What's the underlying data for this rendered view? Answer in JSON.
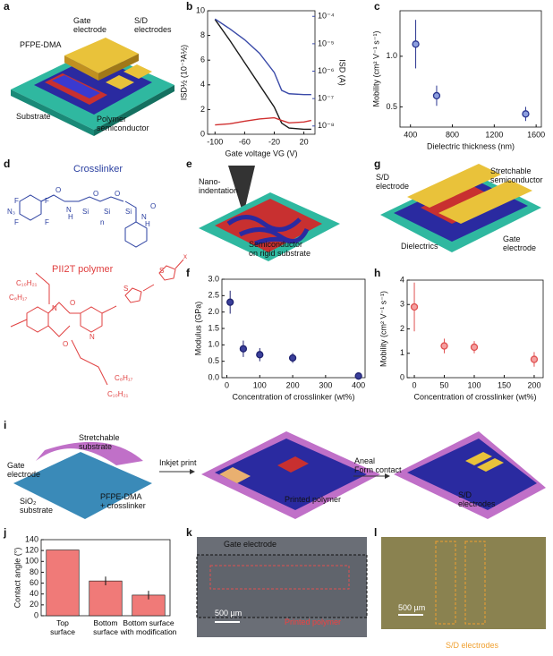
{
  "panel_labels": [
    "a",
    "b",
    "c",
    "d",
    "e",
    "f",
    "g",
    "h",
    "i",
    "j",
    "k",
    "l"
  ],
  "diagrams": {
    "a": [
      "Gate\nelectrode",
      "S/D\nelectrodes",
      "PFPE-DMA",
      "Substrate",
      "Polymer\nsemiconductor"
    ],
    "e": [
      "Nano-\nindentation",
      "Semiconductor\non rigid substrate"
    ],
    "g": [
      "S/D\nelectrode",
      "Stretchable\nsemiconductor",
      "Dielectrics",
      "Gate\nelectrode"
    ],
    "i": [
      "Stretchable\nsubstrate",
      "Gate\nelectrode",
      "SiO₂\nsubstrate",
      "PFPE-DMA\n+ crosslinker",
      "Inkjet print",
      "Printed polymer",
      "Aneal\nForm contact",
      "S/D\nelectrodes"
    ],
    "k": [
      "Gate electrode",
      "Printed polymer",
      "500 µm"
    ],
    "l": [
      "500 µm",
      "S/D electrodes"
    ]
  },
  "chemistry": {
    "crosslinker_title": "Crosslinker",
    "polymer_title": "PII2T polymer",
    "crosslinker_atoms": [
      "F",
      "F",
      "F",
      "F",
      "N₃",
      "O",
      "N",
      "H",
      "Si",
      "O",
      "Si",
      "O",
      "Si",
      "n",
      "N",
      "H",
      "O"
    ],
    "polymer_atoms": [
      "C₁₀H₂₁",
      "C₈H₁₇",
      "N",
      "O",
      "O",
      "N",
      "S",
      "S",
      "x",
      "C₈H₁₇",
      "C₁₀H₂₁"
    ]
  },
  "chart_data": [
    {
      "type": "line",
      "x": [
        -100,
        -80,
        -60,
        -40,
        -20,
        -10,
        0,
        20,
        30
      ],
      "series": [
        {
          "color": "#1a1a1a",
          "values": [
            9.3,
            7.6,
            5.8,
            4.0,
            2.2,
            0.9,
            0.5,
            0.4,
            0.4
          ]
        },
        {
          "color": "#3a4aa8",
          "axis": "y2",
          "values": [
            8e-05,
            3.5e-05,
            1.4e-05,
            4.5e-06,
            9e-07,
            2e-07,
            1.5e-07,
            1.4e-07,
            1.4e-07
          ]
        },
        {
          "color": "#d03030",
          "axis": "y2",
          "values": [
            1.1e-08,
            1.2e-08,
            1.5e-08,
            1.8e-08,
            2e-08,
            1.6e-08,
            1.3e-08,
            1.4e-08,
            1.6e-08
          ]
        }
      ],
      "xlim": [
        -110,
        35
      ],
      "xticks": [
        -100,
        -60,
        -20,
        20
      ],
      "ylim": [
        0,
        10
      ],
      "yticks": [
        0,
        2,
        4,
        6,
        8,
        10
      ],
      "y2lim": [
        5e-09,
        0.00016
      ],
      "y2log": true,
      "y2ticks": [
        {
          "value": 1e-08,
          "label": "10⁻⁸"
        },
        {
          "value": 1e-07,
          "label": "10⁻⁷"
        },
        {
          "value": 1e-06,
          "label": "10⁻⁶"
        },
        {
          "value": 1e-05,
          "label": "10⁻⁵"
        },
        {
          "value": 0.0001,
          "label": "10⁻⁴"
        }
      ],
      "xlabel": "Gate voltage VG (V)",
      "ylabel": "ISD½ (10⁻³A½)",
      "y2label": "ISD (A)"
    },
    {
      "type": "scatter",
      "x": [
        450,
        650,
        1500
      ],
      "values": [
        1.12,
        0.61,
        0.43
      ],
      "errors": [
        0.24,
        0.1,
        0.07
      ],
      "xlim": [
        300,
        1650
      ],
      "xticks": [
        400,
        800,
        1200,
        1600
      ],
      "ylim": [
        0.3,
        1.45
      ],
      "yticks": [
        0.5,
        {
          "value": 1,
          "label": "1.0"
        }
      ],
      "xlabel": "Dielectric thickness (nm)",
      "ylabel": "Mobility (cm² V⁻¹ s⁻¹)",
      "color": "#8c9ede",
      "edge_color": "#2a3590"
    },
    {
      "type": "scatter",
      "x": [
        10,
        50,
        100,
        200,
        400
      ],
      "values": [
        2.3,
        0.88,
        0.7,
        0.6,
        0.05
      ],
      "errors": [
        0.35,
        0.25,
        0.2,
        0.15,
        null
      ],
      "xlim": [
        -15,
        420
      ],
      "xticks": [
        0,
        100,
        200,
        300,
        400
      ],
      "ylim": [
        0,
        3
      ],
      "yticks": [
        {
          "value": 0,
          "label": "0.0"
        },
        0.5,
        {
          "value": 1,
          "label": "1.0"
        },
        1.5,
        {
          "value": 2,
          "label": "2.0"
        },
        2.5,
        {
          "value": 3,
          "label": "3.0"
        }
      ],
      "xlabel": "Concentration of crosslinker (wt%)",
      "ylabel": "Modulus (GPa)",
      "color": "#3a3f9a",
      "edge_color": "#1f2270"
    },
    {
      "type": "scatter",
      "x": [
        0,
        50,
        100,
        200
      ],
      "values": [
        2.9,
        1.3,
        1.25,
        0.75
      ],
      "errors": [
        1.0,
        0.3,
        0.25,
        0.3
      ],
      "xlim": [
        -12,
        215
      ],
      "xticks": [
        0,
        50,
        100,
        150,
        200
      ],
      "ylim": [
        0,
        4
      ],
      "yticks": [
        0,
        1,
        2,
        3,
        4
      ],
      "xlabel": "Concentration of crosslinker (wt%)",
      "ylabel": "Mobility (cm² V⁻¹ s⁻¹)",
      "color": "#f4a0a0",
      "edge_color": "#e05050"
    },
    {
      "type": "bar",
      "categories": [
        "Top\nsurface",
        "Bottom\nsurface",
        "Bottom surface\nwith modification"
      ],
      "values": [
        121,
        64,
        38
      ],
      "errors": [
        null,
        8,
        8
      ],
      "ylim": [
        0,
        140
      ],
      "yticks": [
        0,
        20,
        40,
        60,
        80,
        100,
        120,
        140
      ],
      "ylabel": "Contact angle (°)",
      "color": "#f07a78"
    }
  ]
}
